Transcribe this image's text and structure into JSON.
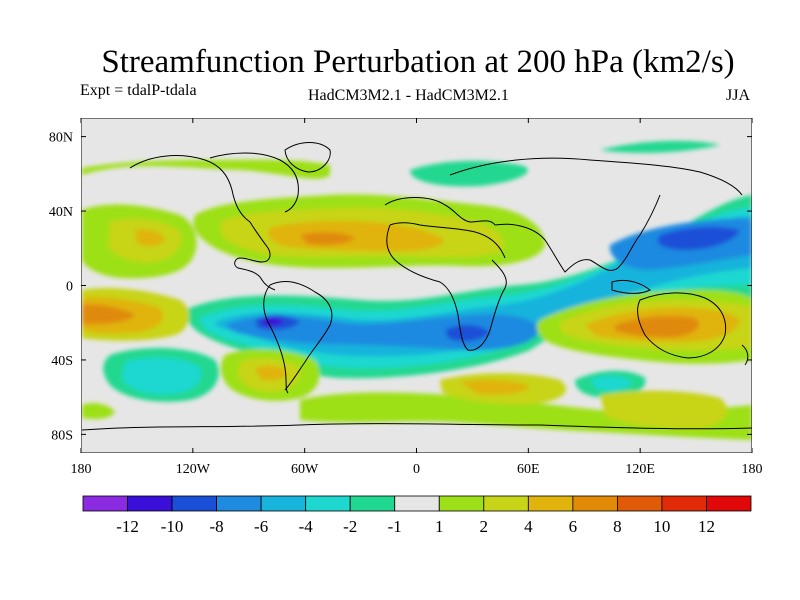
{
  "title": "Streamfunction Perturbation at 200 hPa (km2/s)",
  "subtitle_left": "Expt = tdalP-tdala",
  "subtitle_center": "HadCM3M2.1 - HadCM3M2.1",
  "subtitle_right": "JJA",
  "map": {
    "lon_range": [
      -180,
      180
    ],
    "lat_range": [
      -90,
      90
    ],
    "lat_ticks": [
      {
        "value": 80,
        "label": "80N"
      },
      {
        "value": 40,
        "label": "40N"
      },
      {
        "value": 0,
        "label": "0"
      },
      {
        "value": -40,
        "label": "40S"
      },
      {
        "value": -80,
        "label": "80S"
      }
    ],
    "lon_ticks": [
      {
        "value": -180,
        "label": "180"
      },
      {
        "value": -120,
        "label": "120W"
      },
      {
        "value": -60,
        "label": "60W"
      },
      {
        "value": 0,
        "label": "0"
      },
      {
        "value": 60,
        "label": "60E"
      },
      {
        "value": 120,
        "label": "120E"
      },
      {
        "value": 180,
        "label": "180"
      }
    ],
    "background_color": "#e6e6e6"
  },
  "colorbar": {
    "labels": [
      "-12",
      "-10",
      "-8",
      "-6",
      "-4",
      "-2",
      "-1",
      "1",
      "2",
      "4",
      "6",
      "8",
      "10",
      "12"
    ],
    "colors": [
      "#8a2be2",
      "#3a10d8",
      "#1a50d8",
      "#1e8ae0",
      "#18b4dc",
      "#1ed8d0",
      "#20d890",
      "#e6e6e6",
      "#9ee018",
      "#c8d418",
      "#e0b40c",
      "#e08a08",
      "#e05a08",
      "#e02a08",
      "#e00808"
    ]
  },
  "field_levels": [
    {
      "lon": 150,
      "lat": 28,
      "value": -10
    },
    {
      "lon": -70,
      "lat": -20,
      "value": -9
    },
    {
      "lon": 30,
      "lat": -23,
      "value": -9
    },
    {
      "lon": -35,
      "lat": 25,
      "value": 7
    },
    {
      "lon": 140,
      "lat": -23,
      "value": 8
    },
    {
      "lon": -170,
      "lat": -20,
      "value": 8
    },
    {
      "lon": -145,
      "lat": 27,
      "value": 5
    },
    {
      "lon": -70,
      "lat": -48,
      "value": 5
    }
  ]
}
